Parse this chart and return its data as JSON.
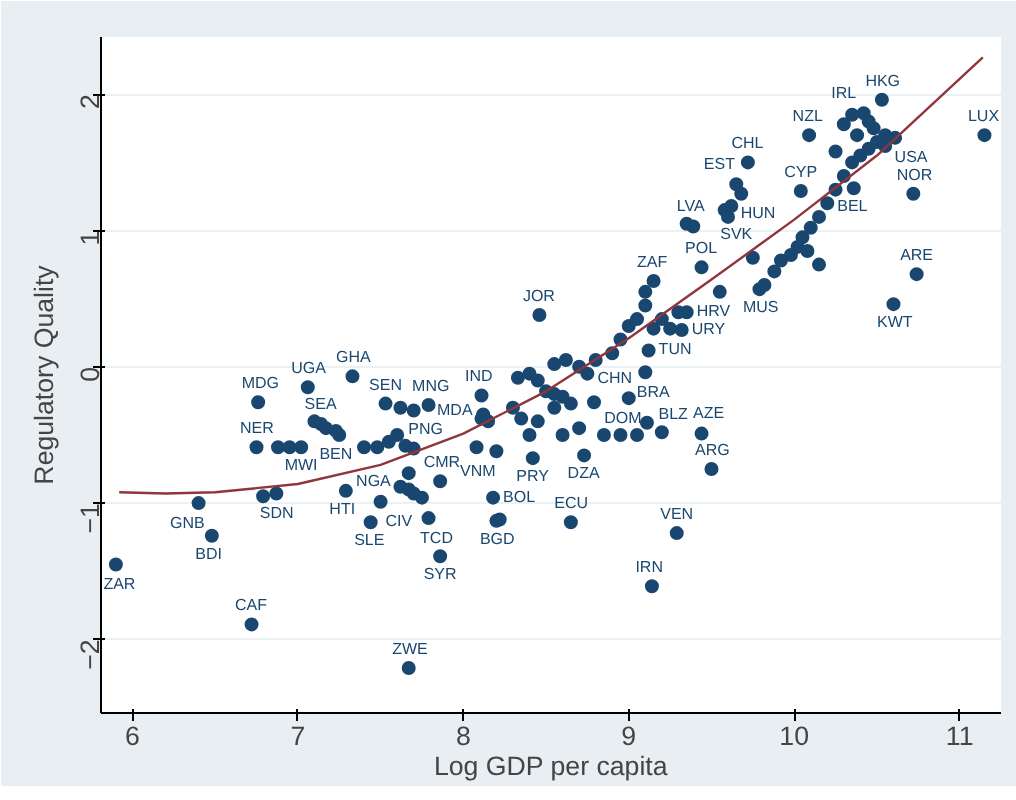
{
  "chart_data": {
    "type": "scatter",
    "xlabel": "Log GDP per capita",
    "ylabel": "Regulatory Quality",
    "xlim": [
      5.81,
      11.25
    ],
    "ylim": [
      -2.54,
      2.42
    ],
    "xticks": [
      6,
      7,
      8,
      9,
      10,
      11
    ],
    "yticks": [
      -2,
      -1,
      0,
      1,
      2
    ],
    "grid": "y",
    "marker": "circle",
    "series": [
      {
        "color": "#1a476f",
        "x": [
          5.9,
          6.72,
          7.67,
          6.48,
          6.4,
          6.87,
          6.79,
          7.29,
          7.44,
          7.5,
          7.75,
          7.79,
          7.86,
          7.86,
          7.67,
          7.67,
          6.76,
          7.06,
          7.33,
          6.75,
          7.02,
          7.53,
          7.79,
          7.14,
          7.23,
          8.11,
          8.11,
          8.08,
          8.18,
          8.2,
          8.46,
          8.42,
          8.73,
          8.65,
          9.29,
          9.5,
          9.1,
          9.12,
          9.32,
          9.35,
          9.15,
          9.44,
          9.0,
          8.79,
          9.11,
          9.44,
          9.39,
          9.14,
          10.53,
          10.42,
          10.09,
          10.61,
          11.15,
          9.72,
          9.65,
          9.68,
          9.58,
          10.04,
          10.36,
          10.72,
          10.74,
          10.6,
          9.79,
          7.1,
          7.17,
          7.25,
          7.4,
          7.48,
          7.55,
          7.6,
          7.65,
          7.7,
          7.62,
          7.7,
          7.62,
          7.7,
          6.88,
          6.95,
          8.12,
          8.15,
          8.2,
          8.22,
          8.33,
          8.4,
          8.45,
          8.5,
          8.55,
          8.6,
          8.65,
          8.55,
          8.45,
          8.35,
          8.3,
          8.4,
          8.6,
          8.7,
          8.85,
          8.95,
          9.05,
          9.2,
          8.75,
          8.8,
          8.7,
          8.9,
          8.95,
          9.0,
          9.05,
          9.1,
          9.2,
          9.15,
          9.25,
          9.3,
          9.1,
          8.62,
          8.55,
          9.55,
          9.82,
          9.88,
          9.92,
          9.98,
          10.02,
          10.05,
          10.1,
          10.15,
          10.2,
          10.25,
          10.3,
          10.35,
          10.4,
          10.45,
          10.5,
          10.55,
          10.48,
          10.38,
          10.3,
          10.35,
          10.45,
          10.55,
          10.25,
          10.15,
          10.08,
          9.35,
          9.75,
          9.62,
          9.6
        ],
        "values": [
          -1.45,
          -1.89,
          -2.21,
          -1.24,
          -1.0,
          -0.93,
          -0.95,
          -0.91,
          -1.14,
          -0.99,
          -0.96,
          -1.11,
          -1.39,
          -0.84,
          -0.78,
          -0.9,
          -0.26,
          -0.15,
          -0.07,
          -0.59,
          -0.59,
          -0.27,
          -0.28,
          -0.42,
          -0.47,
          -0.21,
          -0.38,
          -0.59,
          -0.96,
          -1.13,
          0.38,
          -0.67,
          -0.65,
          -1.14,
          -1.22,
          -0.75,
          -0.04,
          0.12,
          0.27,
          0.4,
          0.63,
          0.73,
          -0.23,
          -0.26,
          -0.41,
          -0.49,
          1.03,
          -1.61,
          1.96,
          1.86,
          1.7,
          1.68,
          1.7,
          1.5,
          1.34,
          1.27,
          1.15,
          1.29,
          1.31,
          1.27,
          0.68,
          0.46,
          0.57,
          -0.4,
          -0.45,
          -0.5,
          -0.59,
          -0.59,
          -0.55,
          -0.5,
          -0.58,
          -0.6,
          -0.3,
          -0.32,
          -0.88,
          -0.93,
          -0.59,
          -0.59,
          -0.35,
          -0.4,
          -0.62,
          -1.12,
          -0.08,
          -0.05,
          -0.1,
          -0.18,
          -0.2,
          -0.22,
          -0.27,
          -0.3,
          -0.4,
          -0.38,
          -0.3,
          -0.5,
          -0.5,
          -0.45,
          -0.5,
          -0.5,
          -0.5,
          -0.48,
          -0.05,
          0.05,
          0.0,
          0.1,
          0.2,
          0.3,
          0.35,
          0.45,
          0.35,
          0.28,
          0.28,
          0.4,
          0.55,
          0.05,
          0.02,
          0.55,
          0.6,
          0.7,
          0.78,
          0.82,
          0.88,
          0.95,
          1.02,
          1.1,
          1.2,
          1.3,
          1.4,
          1.5,
          1.55,
          1.6,
          1.65,
          1.62,
          1.75,
          1.7,
          1.78,
          1.85,
          1.8,
          1.7,
          1.58,
          0.75,
          0.85,
          1.05,
          0.8,
          1.18,
          1.1
        ]
      },
      {
        "type": "line",
        "color": "#90353b",
        "line_style": "solid",
        "marker": "none",
        "x": [
          5.92,
          6.2,
          6.5,
          7.0,
          7.5,
          8.0,
          8.5,
          9.0,
          9.5,
          10.0,
          10.5,
          11.14
        ],
        "values": [
          -0.92,
          -0.93,
          -0.92,
          -0.86,
          -0.72,
          -0.49,
          -0.18,
          0.21,
          0.64,
          1.08,
          1.55,
          2.27
        ]
      }
    ],
    "annotations": [
      {
        "text": "ZAR",
        "x": 5.9,
        "y": -1.45
      },
      {
        "text": "CAF",
        "x": 6.72,
        "y": -1.89
      },
      {
        "text": "ZWE",
        "x": 7.67,
        "y": -2.21
      },
      {
        "text": "BDI",
        "x": 6.48,
        "y": -1.24
      },
      {
        "text": "GNB",
        "x": 6.4,
        "y": -1.0
      },
      {
        "text": "SDN",
        "x": 6.87,
        "y": -0.93
      },
      {
        "text": "HTI",
        "x": 7.29,
        "y": -0.91
      },
      {
        "text": "SLE",
        "x": 7.44,
        "y": -1.14
      },
      {
        "text": "NGA",
        "x": 7.5,
        "y": -0.99
      },
      {
        "text": "CIV",
        "x": 7.75,
        "y": -0.96
      },
      {
        "text": "TCD",
        "x": 7.79,
        "y": -1.11
      },
      {
        "text": "SYR",
        "x": 7.86,
        "y": -1.39
      },
      {
        "text": "CMR",
        "x": 7.86,
        "y": -0.84
      },
      {
        "text": "PNG",
        "x": 7.67,
        "y": -0.78
      },
      {
        "text": "MDG",
        "x": 6.76,
        "y": -0.26
      },
      {
        "text": "UGA",
        "x": 7.06,
        "y": -0.15
      },
      {
        "text": "GHA",
        "x": 7.33,
        "y": -0.07
      },
      {
        "text": "NER",
        "x": 6.75,
        "y": -0.59
      },
      {
        "text": "MWI",
        "x": 7.02,
        "y": -0.59
      },
      {
        "text": "SEN",
        "x": 7.53,
        "y": -0.27
      },
      {
        "text": "MNG",
        "x": 7.79,
        "y": -0.28
      },
      {
        "text": "SEA",
        "x": 7.14,
        "y": -0.42
      },
      {
        "text": "BEN",
        "x": 7.23,
        "y": -0.47
      },
      {
        "text": "IND",
        "x": 8.11,
        "y": -0.21
      },
      {
        "text": "MDA",
        "x": 8.11,
        "y": -0.38
      },
      {
        "text": "VNM",
        "x": 8.08,
        "y": -0.59
      },
      {
        "text": "BOL",
        "x": 8.18,
        "y": -0.96
      },
      {
        "text": "BGD",
        "x": 8.2,
        "y": -1.13
      },
      {
        "text": "JOR",
        "x": 8.46,
        "y": 0.38
      },
      {
        "text": "PRY",
        "x": 8.42,
        "y": -0.67
      },
      {
        "text": "DZA",
        "x": 8.73,
        "y": -0.65
      },
      {
        "text": "ECU",
        "x": 8.65,
        "y": -1.14
      },
      {
        "text": "VEN",
        "x": 9.29,
        "y": -1.22
      },
      {
        "text": "ARG",
        "x": 9.5,
        "y": -0.75
      },
      {
        "text": "BRA",
        "x": 9.1,
        "y": -0.04
      },
      {
        "text": "TUN",
        "x": 9.12,
        "y": 0.12
      },
      {
        "text": "URY",
        "x": 9.32,
        "y": 0.27
      },
      {
        "text": "HRV",
        "x": 9.35,
        "y": 0.4
      },
      {
        "text": "ZAF",
        "x": 9.15,
        "y": 0.63
      },
      {
        "text": "POL",
        "x": 9.44,
        "y": 0.73
      },
      {
        "text": "DOM",
        "x": 9.0,
        "y": -0.23
      },
      {
        "text": "CHN",
        "x": 8.79,
        "y": -0.26
      },
      {
        "text": "BLZ",
        "x": 9.11,
        "y": -0.41
      },
      {
        "text": "AZE",
        "x": 9.44,
        "y": -0.49
      },
      {
        "text": "LVA",
        "x": 9.39,
        "y": 1.03
      },
      {
        "text": "IRN",
        "x": 9.14,
        "y": -1.61
      },
      {
        "text": "HKG",
        "x": 10.53,
        "y": 1.96
      },
      {
        "text": "IRL",
        "x": 10.42,
        "y": 1.86
      },
      {
        "text": "NZL",
        "x": 10.09,
        "y": 1.7
      },
      {
        "text": "USA",
        "x": 10.61,
        "y": 1.68
      },
      {
        "text": "LUX",
        "x": 11.15,
        "y": 1.7
      },
      {
        "text": "CHL",
        "x": 9.72,
        "y": 1.5
      },
      {
        "text": "EST",
        "x": 9.65,
        "y": 1.34
      },
      {
        "text": "HUN",
        "x": 9.68,
        "y": 1.27
      },
      {
        "text": "SVK",
        "x": 9.58,
        "y": 1.15
      },
      {
        "text": "CYP",
        "x": 10.04,
        "y": 1.29
      },
      {
        "text": "BEL",
        "x": 10.36,
        "y": 1.31
      },
      {
        "text": "NOR",
        "x": 10.72,
        "y": 1.27
      },
      {
        "text": "ARE",
        "x": 10.74,
        "y": 0.68
      },
      {
        "text": "KWT",
        "x": 10.6,
        "y": 0.46
      },
      {
        "text": "MUS",
        "x": 9.79,
        "y": 0.57
      }
    ]
  }
}
